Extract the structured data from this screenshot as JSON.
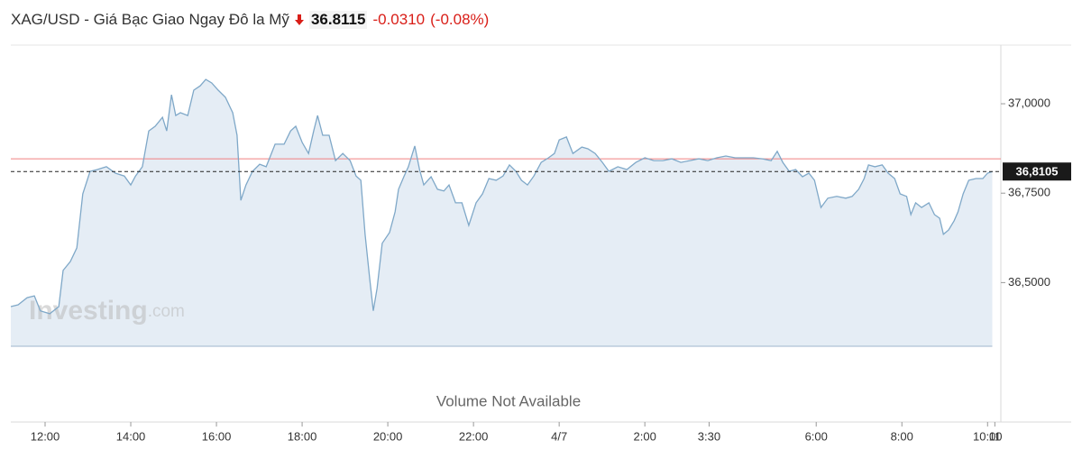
{
  "chart_data": {
    "type": "area",
    "title": "XAG/USD - Giá Bạc Giao Ngay Đô la Mỹ",
    "price": "36.8115",
    "change": "-0.0310",
    "change_percent": "(-0.08%)",
    "watermark": "Investing",
    "watermark_suffix": ".com",
    "volume_note": "Volume Not Available",
    "line_color": "#7fa8c8",
    "fill_color": "#e5edf5",
    "reference_line": {
      "value": 36.846,
      "color": "#f08080"
    },
    "last_price": {
      "value": 36.8105,
      "label": "36,8105"
    },
    "xlim": [
      -0.8,
      22.31
    ],
    "ylim": [
      36.322,
      37.164
    ],
    "yticks": [
      {
        "value": 36.5,
        "label": "36,5000"
      },
      {
        "value": 36.75,
        "label": "36,7500"
      },
      {
        "value": 37,
        "label": "37,0000"
      }
    ],
    "xticks": [
      {
        "value": 0,
        "label": "12:00"
      },
      {
        "value": 2,
        "label": "14:00"
      },
      {
        "value": 4,
        "label": "16:00"
      },
      {
        "value": 6,
        "label": "18:00"
      },
      {
        "value": 8,
        "label": "20:00"
      },
      {
        "value": 10,
        "label": "22:00"
      },
      {
        "value": 12,
        "label": "4/7"
      },
      {
        "value": 14,
        "label": "2:00"
      },
      {
        "value": 15.5,
        "label": "3:30"
      },
      {
        "value": 18,
        "label": "6:00"
      },
      {
        "value": 20,
        "label": "8:00"
      },
      {
        "value": 22,
        "label": "10:00"
      },
      {
        "value": 22.17,
        "label": "11"
      }
    ],
    "x": [
      -0.8,
      -0.63,
      -0.42,
      -0.25,
      -0.11,
      0.11,
      0.32,
      0.42,
      0.59,
      0.74,
      0.88,
      1.05,
      1.22,
      1.43,
      1.64,
      1.85,
      2.0,
      2.11,
      2.27,
      2.42,
      2.57,
      2.74,
      2.84,
      2.95,
      3.05,
      3.16,
      3.33,
      3.47,
      3.62,
      3.75,
      3.89,
      4.04,
      4.21,
      4.38,
      4.48,
      4.57,
      4.69,
      4.84,
      5.01,
      5.16,
      5.37,
      5.58,
      5.73,
      5.85,
      6.0,
      6.15,
      6.27,
      6.36,
      6.48,
      6.63,
      6.78,
      6.95,
      7.12,
      7.26,
      7.37,
      7.47,
      7.58,
      7.66,
      7.75,
      7.87,
      8.04,
      8.17,
      8.25,
      8.38,
      8.48,
      8.63,
      8.74,
      8.84,
      9.01,
      9.16,
      9.31,
      9.43,
      9.58,
      9.73,
      9.89,
      10.06,
      10.21,
      10.36,
      10.53,
      10.69,
      10.84,
      10.99,
      11.12,
      11.26,
      11.41,
      11.58,
      11.75,
      11.89,
      12.0,
      12.17,
      12.32,
      12.53,
      12.67,
      12.84,
      13.01,
      13.16,
      13.37,
      13.58,
      13.79,
      14.0,
      14.21,
      14.42,
      14.63,
      14.84,
      15.05,
      15.26,
      15.47,
      15.68,
      15.89,
      16.11,
      16.32,
      16.53,
      16.74,
      16.95,
      17.09,
      17.22,
      17.37,
      17.52,
      17.68,
      17.83,
      17.96,
      18.11,
      18.27,
      18.48,
      18.69,
      18.84,
      18.99,
      19.12,
      19.22,
      19.37,
      19.54,
      19.68,
      19.83,
      19.96,
      20.11,
      20.21,
      20.32,
      20.46,
      20.63,
      20.76,
      20.88,
      20.97,
      21.09,
      21.22,
      21.31,
      21.43,
      21.56,
      21.73,
      21.89,
      22.0,
      22.11
    ],
    "values": [
      36.433,
      36.438,
      36.458,
      36.463,
      36.421,
      36.413,
      36.433,
      36.534,
      36.559,
      36.597,
      36.748,
      36.811,
      36.816,
      36.824,
      36.806,
      36.798,
      36.773,
      36.798,
      36.824,
      36.924,
      36.937,
      36.962,
      36.924,
      37.025,
      36.967,
      36.975,
      36.967,
      37.038,
      37.05,
      37.068,
      37.058,
      37.038,
      37.018,
      36.975,
      36.912,
      36.73,
      36.773,
      36.811,
      36.831,
      36.824,
      36.887,
      36.887,
      36.924,
      36.937,
      36.892,
      36.861,
      36.924,
      36.967,
      36.912,
      36.912,
      36.841,
      36.861,
      36.841,
      36.798,
      36.786,
      36.635,
      36.509,
      36.421,
      36.484,
      36.61,
      36.64,
      36.698,
      36.761,
      36.798,
      36.824,
      36.882,
      36.816,
      36.773,
      36.796,
      36.761,
      36.756,
      36.773,
      36.723,
      36.723,
      36.66,
      36.723,
      36.748,
      36.791,
      36.786,
      36.798,
      36.829,
      36.811,
      36.786,
      36.773,
      36.798,
      36.836,
      36.849,
      36.861,
      36.899,
      36.907,
      36.861,
      36.879,
      36.874,
      36.861,
      36.836,
      36.811,
      36.824,
      36.816,
      36.836,
      36.849,
      36.841,
      36.841,
      36.846,
      36.836,
      36.841,
      36.846,
      36.841,
      36.849,
      36.854,
      36.849,
      36.849,
      36.849,
      36.846,
      36.841,
      36.867,
      36.836,
      36.811,
      36.816,
      36.796,
      36.806,
      36.786,
      36.71,
      36.736,
      36.741,
      36.736,
      36.741,
      36.761,
      36.791,
      36.829,
      36.824,
      36.829,
      36.806,
      36.791,
      36.748,
      36.741,
      36.69,
      36.723,
      36.71,
      36.723,
      36.69,
      36.68,
      36.635,
      36.647,
      36.673,
      36.698,
      36.748,
      36.786,
      36.791,
      36.791,
      36.806,
      36.8105
    ]
  }
}
